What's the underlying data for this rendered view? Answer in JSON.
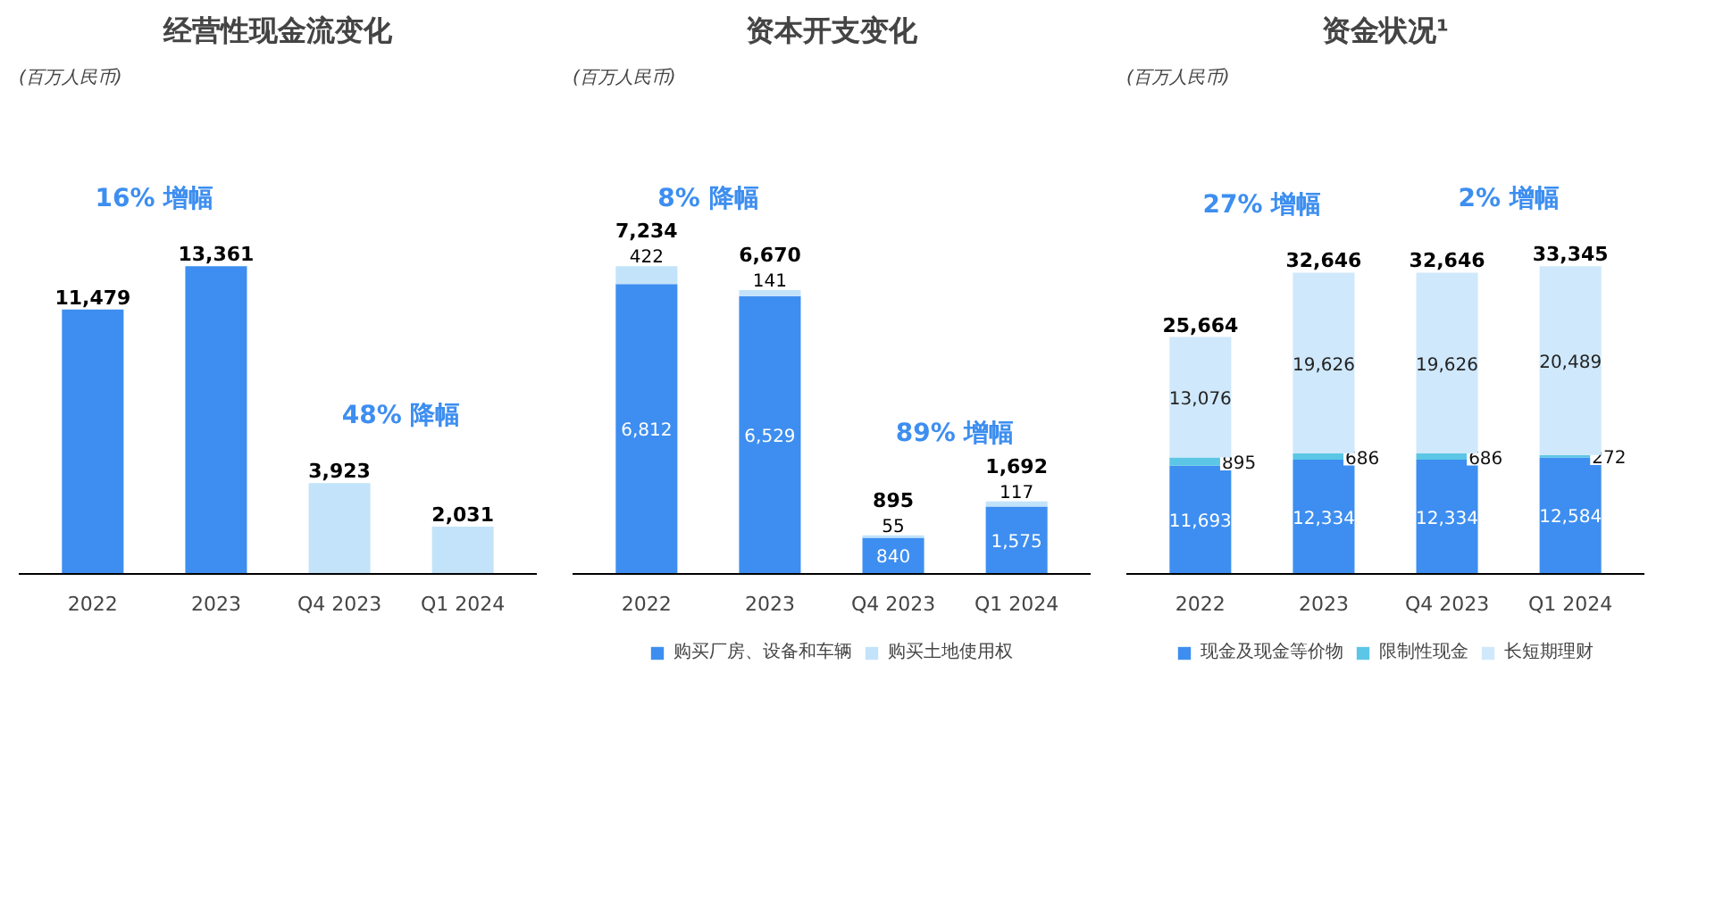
{
  "chart_data": [
    {
      "type": "bar",
      "title": "经营性现金流变化",
      "subtitle": "(百万人民币)",
      "categories": [
        "2022",
        "2023",
        "Q4 2023",
        "Q1 2024"
      ],
      "values": [
        11479,
        13361,
        3923,
        2031
      ],
      "value_labels": [
        "11,479",
        "13,361",
        "3,923",
        "2,031"
      ],
      "colors": [
        "#3d8ef0",
        "#3d8ef0",
        "#c3e3fa",
        "#c3e3fa"
      ],
      "annotations": [
        "16% 增幅",
        "48% 降幅"
      ]
    },
    {
      "type": "bar",
      "title": "资本开支变化",
      "subtitle": "(百万人民币)",
      "categories": [
        "2022",
        "2023",
        "Q4 2023",
        "Q1 2024"
      ],
      "stacked": true,
      "legend": "bottom",
      "series": [
        {
          "name": "购买厂房、设备和车辆",
          "color": "#3d8ef0",
          "values": [
            6812,
            6529,
            840,
            1575
          ],
          "value_labels": [
            "6,812",
            "6,529",
            "840",
            "1,575"
          ]
        },
        {
          "name": "购买土地使用权",
          "color": "#c3e3fa",
          "values": [
            422,
            141,
            55,
            117
          ],
          "value_labels": [
            "422",
            "141",
            "55",
            "117"
          ]
        }
      ],
      "totals": [
        "7,234",
        "6,670",
        "895",
        "1,692"
      ],
      "annotations": [
        "8% 降幅",
        "89% 增幅"
      ]
    },
    {
      "type": "bar",
      "title": "资金状况¹",
      "subtitle": "(百万人民币)",
      "categories": [
        "2022",
        "2023",
        "Q4 2023",
        "Q1 2024"
      ],
      "stacked": true,
      "legend": "bottom",
      "series": [
        {
          "name": "现金及现金等价物",
          "color": "#3d8ef0",
          "values": [
            11693,
            12334,
            12334,
            12584
          ],
          "value_labels": [
            "11,693",
            "12,334",
            "12,334",
            "12,584"
          ]
        },
        {
          "name": "限制性现金",
          "color": "#5cc6e6",
          "values": [
            895,
            686,
            686,
            272
          ],
          "value_labels": [
            "895",
            "686",
            "686",
            "272"
          ]
        },
        {
          "name": "长短期理财",
          "color": "#cfe8fb",
          "values": [
            13076,
            19626,
            19626,
            20489
          ],
          "value_labels": [
            "13,076",
            "19,626",
            "19,626",
            "20,489"
          ]
        }
      ],
      "totals": [
        "25,664",
        "32,646",
        "32,646",
        "33,345"
      ],
      "annotations": [
        "27% 增幅",
        "2% 增幅"
      ]
    }
  ]
}
